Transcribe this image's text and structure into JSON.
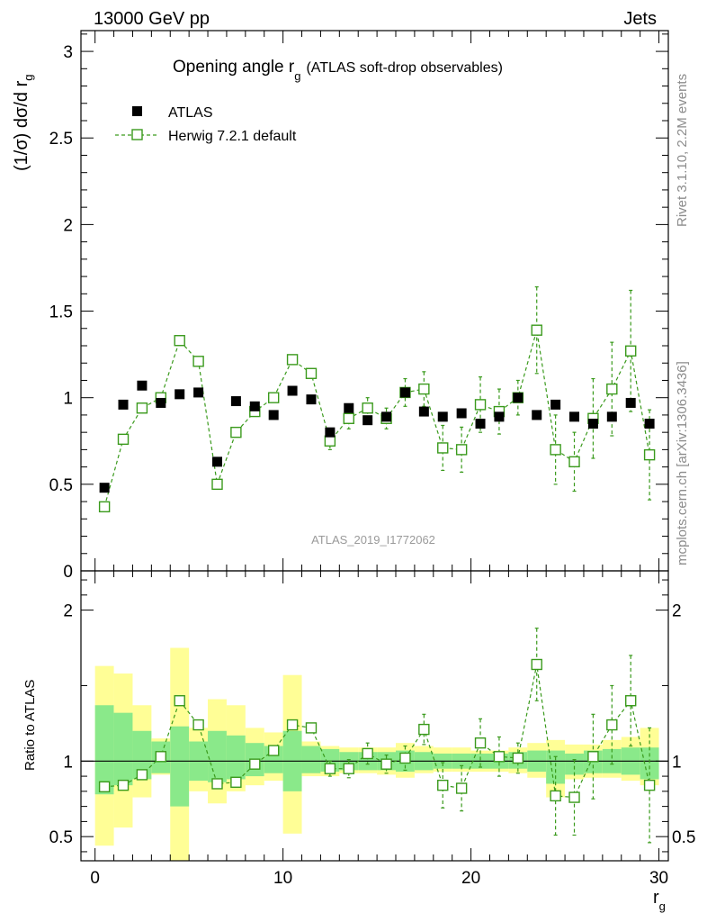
{
  "header": {
    "left": "13000 GeV pp",
    "right": "Jets"
  },
  "side_labels": {
    "rivet": "Rivet 3.1.10,  2.2M events",
    "mcplots": "mcplots.cern.ch [arXiv:1306.3436]"
  },
  "chart_data": [
    {
      "type": "scatter",
      "title": "Opening angle r_g (ATLAS soft-drop observables)",
      "title_main": "Opening angle r",
      "title_sub": "g",
      "title_tail": "(ATLAS soft-drop observables)",
      "watermark": "ATLAS_2019_I1772062",
      "ylabel": "(1/σ) dσ/d r",
      "ylabel_sub": "g",
      "ylim": [
        0,
        3.12
      ],
      "yticks": [
        "0",
        "0.5",
        "1",
        "1.5",
        "2",
        "2.5",
        "3"
      ],
      "x": [
        0.5,
        1.5,
        2.5,
        3.5,
        4.5,
        5.5,
        6.5,
        7.5,
        8.5,
        9.5,
        10.5,
        11.5,
        12.5,
        13.5,
        14.5,
        15.5,
        16.5,
        17.5,
        18.5,
        19.5,
        20.5,
        21.5,
        22.5,
        23.5,
        24.5,
        25.5,
        26.5,
        27.5,
        28.5,
        29.5
      ],
      "legend_position": "top-left",
      "series": [
        {
          "name": "ATLAS",
          "color": "#000000",
          "marker": "filled-square",
          "values": [
            0.48,
            0.96,
            1.07,
            0.97,
            1.02,
            1.03,
            0.63,
            0.98,
            0.95,
            0.9,
            1.04,
            0.99,
            0.8,
            0.94,
            0.87,
            0.89,
            1.03,
            0.92,
            0.89,
            0.91,
            0.85,
            0.89,
            1.0,
            0.9,
            0.96,
            0.89,
            0.85,
            0.89,
            0.97,
            0.85
          ]
        },
        {
          "name": "Herwig 7.2.1 default",
          "color": "#3a9a1c",
          "marker": "open-square",
          "line": "dashed",
          "values": [
            0.37,
            0.76,
            0.94,
            1.0,
            1.33,
            1.21,
            0.5,
            0.8,
            0.92,
            1.0,
            1.22,
            1.14,
            0.75,
            0.88,
            0.94,
            0.88,
            1.03,
            1.05,
            0.71,
            0.7,
            0.96,
            0.92,
            1.0,
            1.39,
            0.7,
            0.63,
            0.88,
            1.05,
            1.27,
            0.67
          ],
          "errors": [
            0.01,
            0.01,
            0.01,
            0.01,
            0.01,
            0.01,
            0.01,
            0.01,
            0.01,
            0.02,
            0.02,
            0.02,
            0.05,
            0.06,
            0.06,
            0.06,
            0.08,
            0.1,
            0.13,
            0.13,
            0.16,
            0.13,
            0.1,
            0.25,
            0.2,
            0.17,
            0.23,
            0.27,
            0.35,
            0.26
          ]
        }
      ]
    },
    {
      "type": "scatter",
      "title": "",
      "ylabel": "Ratio to ATLAS",
      "xlabel": "r",
      "xlabel_sub": "g",
      "xlim": [
        -0.75,
        30.5
      ],
      "xticks": [
        "0",
        "10",
        "20",
        "30"
      ],
      "ylim": [
        0.34,
        2.26
      ],
      "yticks": [
        "0.5",
        "1",
        "2"
      ],
      "reference_line": 1,
      "bands": {
        "x_edges": [
          0,
          1,
          2,
          3,
          4,
          5,
          6,
          7,
          8,
          9,
          10,
          11,
          12,
          13,
          14,
          15,
          16,
          17,
          18,
          19,
          20,
          21,
          22,
          23,
          24,
          25,
          26,
          27,
          28,
          29,
          30
        ],
        "inner_color": "#8ae98a",
        "outer_color": "#fffe96",
        "inner_lo": [
          0.78,
          0.84,
          0.88,
          0.92,
          0.7,
          0.87,
          0.86,
          0.88,
          0.9,
          0.92,
          0.8,
          0.92,
          0.93,
          0.94,
          0.94,
          0.94,
          0.93,
          0.94,
          0.95,
          0.95,
          0.95,
          0.95,
          0.95,
          0.93,
          0.85,
          0.91,
          0.92,
          0.92,
          0.91,
          0.88
        ],
        "inner_hi": [
          1.37,
          1.32,
          1.2,
          1.13,
          1.23,
          1.13,
          1.2,
          1.17,
          1.12,
          1.1,
          1.2,
          1.1,
          1.08,
          1.06,
          1.06,
          1.06,
          1.07,
          1.06,
          1.05,
          1.05,
          1.05,
          1.05,
          1.06,
          1.07,
          1.07,
          1.05,
          1.07,
          1.08,
          1.09,
          1.09
        ],
        "outer_lo": [
          0.44,
          0.56,
          0.76,
          0.91,
          0.3,
          0.8,
          0.72,
          0.8,
          0.84,
          0.87,
          0.52,
          0.9,
          0.9,
          0.92,
          0.92,
          0.91,
          0.89,
          0.92,
          0.93,
          0.93,
          0.93,
          0.93,
          0.92,
          0.89,
          0.76,
          0.88,
          0.89,
          0.89,
          0.87,
          0.84
        ],
        "outer_hi": [
          1.63,
          1.58,
          1.37,
          1.15,
          1.75,
          1.22,
          1.41,
          1.37,
          1.22,
          1.19,
          1.57,
          1.13,
          1.1,
          1.09,
          1.09,
          1.09,
          1.12,
          1.1,
          1.09,
          1.09,
          1.07,
          1.07,
          1.09,
          1.12,
          1.14,
          1.11,
          1.11,
          1.14,
          1.16,
          1.22
        ]
      },
      "series": [
        {
          "name": "Herwig 7.2.1 default",
          "color": "#3a9a1c",
          "marker": "open-square",
          "line": "dashed",
          "values": [
            0.83,
            0.84,
            0.91,
            1.03,
            1.4,
            1.24,
            0.85,
            0.86,
            0.98,
            1.07,
            1.24,
            1.22,
            0.95,
            0.95,
            1.05,
            0.98,
            1.02,
            1.21,
            0.84,
            0.82,
            1.12,
            1.03,
            1.02,
            1.64,
            0.77,
            0.76,
            1.03,
            1.24,
            1.4,
            0.84
          ],
          "errors": [
            0.01,
            0.01,
            0.01,
            0.01,
            0.01,
            0.02,
            0.02,
            0.02,
            0.02,
            0.02,
            0.02,
            0.02,
            0.05,
            0.06,
            0.07,
            0.06,
            0.08,
            0.1,
            0.15,
            0.15,
            0.16,
            0.13,
            0.1,
            0.24,
            0.26,
            0.25,
            0.28,
            0.26,
            0.3,
            0.38
          ]
        }
      ]
    }
  ]
}
